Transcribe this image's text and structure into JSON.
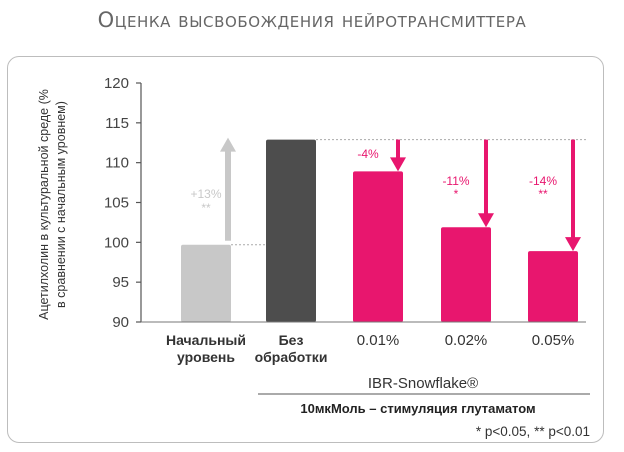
{
  "chart_data": {
    "type": "bar",
    "title": "Оценка высвобождения нейротрансмиттера",
    "ylabel": "Ацетилхолин в культуральной среде (% в сравнении с начальным уровнем)",
    "ylabel_lines": [
      "Ацетилхолин в культуральной среде (%",
      "в сравнении с начальным уровнем)"
    ],
    "ylim": [
      90,
      120
    ],
    "yticks": [
      90,
      95,
      100,
      105,
      110,
      115,
      120
    ],
    "categories": [
      {
        "lines": [
          "Начальный",
          "уровень"
        ],
        "bold": true
      },
      {
        "lines": [
          "Без",
          "обработки"
        ],
        "bold": true
      },
      {
        "lines": [
          "0.01%"
        ],
        "bold": false
      },
      {
        "lines": [
          "0.02%"
        ],
        "bold": false
      },
      {
        "lines": [
          "0.05%"
        ],
        "bold": false
      }
    ],
    "values": [
      99.7,
      112.9,
      108.9,
      101.9,
      98.9
    ],
    "colors": [
      "#c8c8c8",
      "#4d4d4d",
      "#e8166e",
      "#e8166e",
      "#e8166e"
    ],
    "annotations": [
      {
        "bar": 0,
        "label": "+13%",
        "sig": "**",
        "color": "#c8c8c8",
        "direction": "up"
      },
      {
        "bar": 2,
        "label": "-4%",
        "sig": "",
        "color": "#e8166e",
        "direction": "down"
      },
      {
        "bar": 3,
        "label": "-11%",
        "sig": "*",
        "color": "#e8166e",
        "direction": "down"
      },
      {
        "bar": 4,
        "label": "-14%",
        "sig": "**",
        "color": "#e8166e",
        "direction": "down"
      }
    ],
    "reference_value": 112.9,
    "group_label": "IBR-Snowflake®",
    "condition_label": "10мкМоль – стимуляция глутаматом",
    "footnote": "* p<0.05, ** p<0.01",
    "grid": false,
    "legend": "none"
  }
}
